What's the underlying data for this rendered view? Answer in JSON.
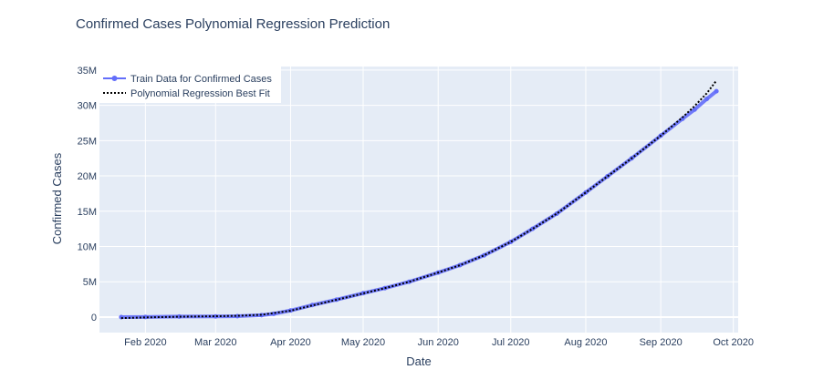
{
  "chart_data": {
    "type": "line",
    "title": "Confirmed Cases Polynomial Regression Prediction",
    "xlabel": "Date",
    "ylabel": "Confirmed Cases",
    "x_ticks": [
      {
        "date": "2020-02-01",
        "label": "Feb 2020"
      },
      {
        "date": "2020-03-01",
        "label": "Mar 2020"
      },
      {
        "date": "2020-04-01",
        "label": "Apr 2020"
      },
      {
        "date": "2020-05-01",
        "label": "May 2020"
      },
      {
        "date": "2020-06-01",
        "label": "Jun 2020"
      },
      {
        "date": "2020-07-01",
        "label": "Jul 2020"
      },
      {
        "date": "2020-08-01",
        "label": "Aug 2020"
      },
      {
        "date": "2020-09-01",
        "label": "Sep 2020"
      },
      {
        "date": "2020-10-01",
        "label": "Oct 2020"
      }
    ],
    "y_ticks": [
      {
        "value": 0,
        "label": "0"
      },
      {
        "value": 5000000,
        "label": "5M"
      },
      {
        "value": 10000000,
        "label": "10M"
      },
      {
        "value": 15000000,
        "label": "15M"
      },
      {
        "value": 20000000,
        "label": "20M"
      },
      {
        "value": 25000000,
        "label": "25M"
      },
      {
        "value": 30000000,
        "label": "30M"
      },
      {
        "value": 35000000,
        "label": "35M"
      }
    ],
    "xlim": [
      "2020-01-13",
      "2020-10-03"
    ],
    "ylim": [
      -2200000,
      35500000
    ],
    "grid": true,
    "legend_position": "top-left",
    "series": [
      {
        "name": "Train Data for Confirmed Cases",
        "color": "#636efa",
        "style": "line+markers",
        "points": [
          [
            "2020-01-22",
            555
          ],
          [
            "2020-02-01",
            12000
          ],
          [
            "2020-02-15",
            69000
          ],
          [
            "2020-03-01",
            88000
          ],
          [
            "2020-03-10",
            120000
          ],
          [
            "2020-03-20",
            270000
          ],
          [
            "2020-03-25",
            460000
          ],
          [
            "2020-04-01",
            930000
          ],
          [
            "2020-04-10",
            1700000
          ],
          [
            "2020-04-20",
            2470000
          ],
          [
            "2020-05-01",
            3380000
          ],
          [
            "2020-05-10",
            4100000
          ],
          [
            "2020-05-20",
            5000000
          ],
          [
            "2020-06-01",
            6300000
          ],
          [
            "2020-06-10",
            7350000
          ],
          [
            "2020-06-20",
            8750000
          ],
          [
            "2020-07-01",
            10650000
          ],
          [
            "2020-07-10",
            12500000
          ],
          [
            "2020-07-20",
            14650000
          ],
          [
            "2020-08-01",
            17650000
          ],
          [
            "2020-08-10",
            19950000
          ],
          [
            "2020-08-20",
            22500000
          ],
          [
            "2020-09-01",
            25700000
          ],
          [
            "2020-09-10",
            28100000
          ],
          [
            "2020-09-15",
            29400000
          ],
          [
            "2020-09-20",
            30900000
          ],
          [
            "2020-09-24",
            32000000
          ]
        ]
      },
      {
        "name": "Polynomial Regression Best Fit",
        "color": "#000000",
        "style": "dotted",
        "points": [
          [
            "2020-01-22",
            -150000
          ],
          [
            "2020-02-01",
            -50000
          ],
          [
            "2020-02-15",
            50000
          ],
          [
            "2020-03-01",
            120000
          ],
          [
            "2020-03-10",
            180000
          ],
          [
            "2020-03-20",
            330000
          ],
          [
            "2020-04-01",
            900000
          ],
          [
            "2020-04-10",
            1650000
          ],
          [
            "2020-04-20",
            2450000
          ],
          [
            "2020-05-01",
            3350000
          ],
          [
            "2020-05-10",
            4100000
          ],
          [
            "2020-05-20",
            5000000
          ],
          [
            "2020-06-01",
            6300000
          ],
          [
            "2020-06-10",
            7350000
          ],
          [
            "2020-06-20",
            8750000
          ],
          [
            "2020-07-01",
            10650000
          ],
          [
            "2020-07-10",
            12500000
          ],
          [
            "2020-07-20",
            14650000
          ],
          [
            "2020-08-01",
            17650000
          ],
          [
            "2020-08-10",
            19950000
          ],
          [
            "2020-08-20",
            22500000
          ],
          [
            "2020-09-01",
            25700000
          ],
          [
            "2020-09-10",
            28300000
          ],
          [
            "2020-09-15",
            29900000
          ],
          [
            "2020-09-20",
            31700000
          ],
          [
            "2020-09-24",
            33500000
          ]
        ]
      }
    ]
  }
}
